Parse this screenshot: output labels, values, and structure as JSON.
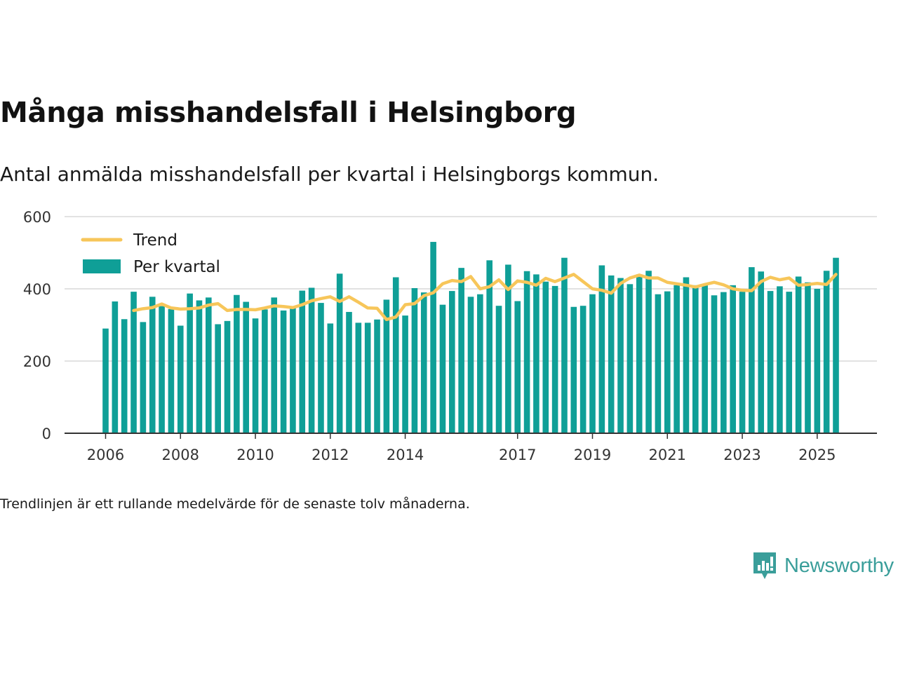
{
  "header": {
    "title": "Många misshandelsfall i Helsingborg",
    "subtitle": "Antal anmälda misshandelsfall per kvartal i Helsingborgs kommun."
  },
  "footer": {
    "note": "Trendlinjen är ett rullande medelvärde för de senaste tolv månaderna.",
    "brand": "Newsworthy"
  },
  "colors": {
    "bar": "#0f9f97",
    "trend": "#f7c65a",
    "grid": "#d9d9d9",
    "axis": "#333333",
    "brand": "#3a9e9a"
  },
  "chart_data": {
    "type": "bar",
    "title": "Många misshandelsfall i Helsingborg",
    "xlabel": "",
    "ylabel": "",
    "ylim": [
      0,
      600
    ],
    "yticks": [
      0,
      200,
      400,
      600
    ],
    "xticks": [
      "2006",
      "2008",
      "2010",
      "2012",
      "2014",
      "2017",
      "2019",
      "2021",
      "2023",
      "2025"
    ],
    "grid": true,
    "legend_position": "top-left",
    "categories": [
      "2006-Q1",
      "2006-Q2",
      "2006-Q3",
      "2006-Q4",
      "2007-Q1",
      "2007-Q2",
      "2007-Q3",
      "2007-Q4",
      "2008-Q1",
      "2008-Q2",
      "2008-Q3",
      "2008-Q4",
      "2009-Q1",
      "2009-Q2",
      "2009-Q3",
      "2009-Q4",
      "2010-Q1",
      "2010-Q2",
      "2010-Q3",
      "2010-Q4",
      "2011-Q1",
      "2011-Q2",
      "2011-Q3",
      "2011-Q4",
      "2012-Q1",
      "2012-Q2",
      "2012-Q3",
      "2012-Q4",
      "2013-Q1",
      "2013-Q2",
      "2013-Q3",
      "2013-Q4",
      "2014-Q1",
      "2014-Q2",
      "2014-Q3",
      "2014-Q4",
      "2015-Q1",
      "2015-Q2",
      "2015-Q3",
      "2015-Q4",
      "2016-Q1",
      "2016-Q2",
      "2016-Q3",
      "2016-Q4",
      "2017-Q1",
      "2017-Q2",
      "2017-Q3",
      "2017-Q4",
      "2018-Q1",
      "2018-Q2",
      "2018-Q3",
      "2018-Q4",
      "2019-Q1",
      "2019-Q2",
      "2019-Q3",
      "2019-Q4",
      "2020-Q1",
      "2020-Q2",
      "2020-Q3",
      "2020-Q4",
      "2021-Q1",
      "2021-Q2",
      "2021-Q3",
      "2021-Q4",
      "2022-Q1",
      "2022-Q2",
      "2022-Q3",
      "2022-Q4",
      "2023-Q1",
      "2023-Q2",
      "2023-Q3",
      "2023-Q4",
      "2024-Q1",
      "2024-Q2",
      "2024-Q3",
      "2024-Q4",
      "2025-Q1",
      "2025-Q2",
      "2025-Q3"
    ],
    "series": [
      {
        "name": "Per kvartal",
        "type": "bar",
        "values": [
          290,
          365,
          316,
          392,
          308,
          378,
          352,
          344,
          298,
          387,
          368,
          376,
          302,
          311,
          383,
          364,
          318,
          343,
          376,
          340,
          350,
          395,
          403,
          361,
          304,
          442,
          336,
          306,
          306,
          315,
          370,
          432,
          326,
          402,
          390,
          530,
          356,
          394,
          458,
          378,
          385,
          479,
          353,
          467,
          366,
          449,
          440,
          420,
          408,
          486,
          350,
          353,
          385,
          465,
          437,
          430,
          413,
          440,
          450,
          385,
          393,
          410,
          432,
          410,
          412,
          382,
          391,
          410,
          392,
          460,
          448,
          394,
          407,
          392,
          434,
          418,
          400,
          450,
          486
        ]
      },
      {
        "name": "Trend",
        "type": "line",
        "values": [
          null,
          null,
          null,
          340,
          345,
          348,
          358,
          347,
          344,
          345,
          347,
          355,
          359,
          340,
          343,
          343,
          342,
          347,
          353,
          351,
          348,
          356,
          367,
          373,
          378,
          365,
          378,
          363,
          347,
          346,
          315,
          322,
          356,
          359,
          381,
          389,
          414,
          423,
          420,
          434,
          400,
          406,
          425,
          398,
          422,
          418,
          410,
          429,
          420,
          430,
          440,
          420,
          400,
          396,
          388,
          415,
          430,
          438,
          430,
          430,
          418,
          414,
          410,
          405,
          412,
          418,
          411,
          400,
          396,
          395,
          420,
          432,
          425,
          430,
          410,
          412,
          415,
          412,
          440
        ]
      }
    ]
  }
}
